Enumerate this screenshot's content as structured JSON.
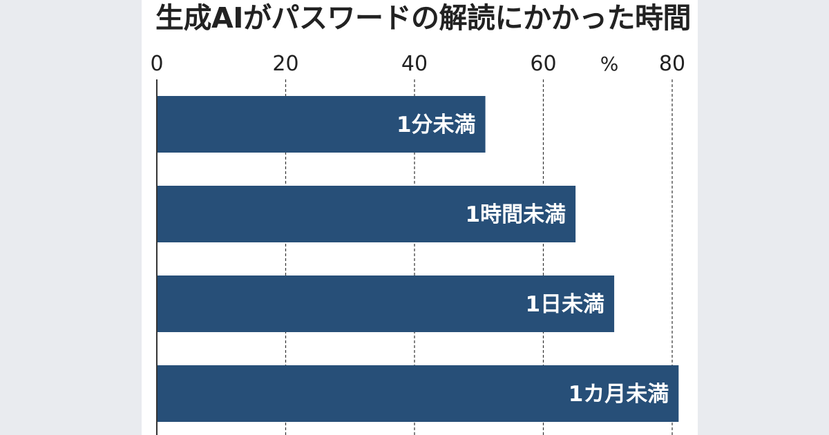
{
  "chart_data": {
    "type": "bar",
    "orientation": "horizontal",
    "title": "生成AIがパスワードの解読にかかった時間",
    "unit": "%",
    "xlim": [
      0,
      80
    ],
    "ticks": [
      "0",
      "20",
      "40",
      "60",
      "80"
    ],
    "tick_values": [
      0,
      20,
      40,
      60,
      80
    ],
    "grid": true,
    "categories": [
      "1分未満",
      "1時間未満",
      "1日未満",
      "1カ月未満"
    ],
    "values": [
      51,
      65,
      71,
      81
    ],
    "colors": {
      "bar": "#274f78",
      "bar_label": "#ffffff",
      "grid": "#333333",
      "text": "#222222",
      "background": "#e9ebef",
      "panel": "#ffffff"
    }
  }
}
